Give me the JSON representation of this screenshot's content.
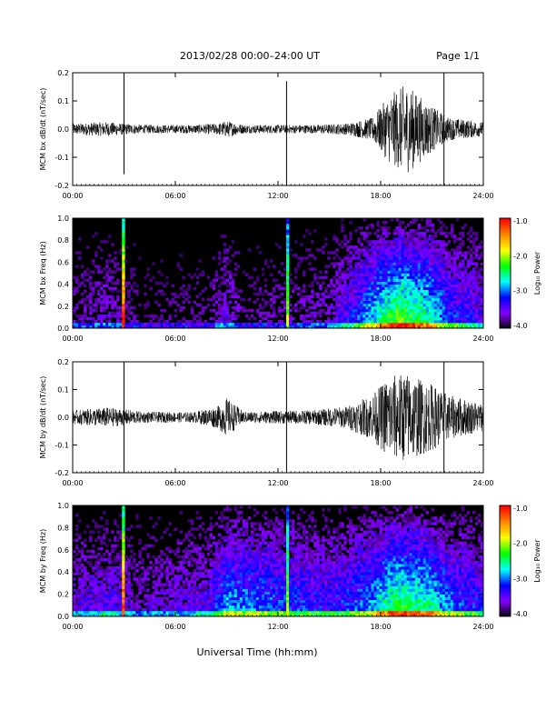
{
  "header": {
    "title": "2013/02/28  00:00–24:00 UT",
    "page": "Page 1/1"
  },
  "footer": {
    "xlabel": "Universal Time (hh:mm)"
  },
  "colorbar": {
    "title": "Log₁₀ Power",
    "ticks": [
      "-1.0",
      "-2.0",
      "-3.0",
      "-4.0"
    ],
    "colors": [
      "#ff0000",
      "#ff8800",
      "#ffff00",
      "#00ff00",
      "#00ffff",
      "#0000ff",
      "#8800ff",
      "#000000"
    ]
  },
  "chart_data": [
    {
      "type": "line",
      "ylabel": "MCM bx dB/dt (nT/sec)",
      "ylim": [
        -0.2,
        0.2
      ],
      "yticks": [
        "0.2",
        "0.1",
        "0.0",
        "-0.1",
        "-0.2"
      ],
      "xticks": [
        "00:00",
        "06:00",
        "12:00",
        "18:00",
        "24:00"
      ],
      "xlim_hours": [
        0,
        24
      ],
      "envelope": [
        {
          "x": 0,
          "amp": 0.02
        },
        {
          "x": 2,
          "amp": 0.025
        },
        {
          "x": 3,
          "amp": 0.02
        },
        {
          "x": 4,
          "amp": 0.015
        },
        {
          "x": 7,
          "amp": 0.015
        },
        {
          "x": 8.5,
          "amp": 0.02
        },
        {
          "x": 9,
          "amp": 0.03
        },
        {
          "x": 10,
          "amp": 0.015
        },
        {
          "x": 14,
          "amp": 0.015
        },
        {
          "x": 16,
          "amp": 0.02
        },
        {
          "x": 17.5,
          "amp": 0.04
        },
        {
          "x": 18.5,
          "amp": 0.12
        },
        {
          "x": 19.5,
          "amp": 0.16
        },
        {
          "x": 21,
          "amp": 0.08
        },
        {
          "x": 22,
          "amp": 0.04
        },
        {
          "x": 24,
          "amp": 0.025
        }
      ],
      "spikes": [
        {
          "x": 3.0,
          "ymin": -0.16,
          "ymax": 0.2
        },
        {
          "x": 12.5,
          "ymin": -0.2,
          "ymax": 0.17
        },
        {
          "x": 21.7,
          "ymin": -0.2,
          "ymax": 0.2
        }
      ]
    },
    {
      "type": "heatmap",
      "ylabel": "MCM bx Freq (Hz)",
      "ylim": [
        0,
        1.0
      ],
      "yticks": [
        "1.0",
        "0.8",
        "0.6",
        "0.4",
        "0.2",
        "0.0"
      ],
      "xticks": [
        "00:00",
        "06:00",
        "12:00",
        "18:00",
        "24:00"
      ],
      "xlim_hours": [
        0,
        24
      ],
      "zlim": [
        -4.0,
        -1.0
      ],
      "activity": [
        {
          "x": 0,
          "level": 0.15
        },
        {
          "x": 2,
          "level": 0.2
        },
        {
          "x": 4,
          "level": 0.1
        },
        {
          "x": 8,
          "level": 0.12
        },
        {
          "x": 9,
          "level": 0.25
        },
        {
          "x": 10,
          "level": 0.12
        },
        {
          "x": 15,
          "level": 0.2
        },
        {
          "x": 17,
          "level": 0.45
        },
        {
          "x": 19,
          "level": 0.75
        },
        {
          "x": 21,
          "level": 0.6
        },
        {
          "x": 22,
          "level": 0.4
        },
        {
          "x": 24,
          "level": 0.3
        }
      ],
      "lines": [
        {
          "x": 3.0,
          "strength": 1.0
        },
        {
          "x": 12.5,
          "strength": 0.7
        }
      ]
    },
    {
      "type": "line",
      "ylabel": "MCM by dB/dt (nT/sec)",
      "ylim": [
        -0.2,
        0.2
      ],
      "yticks": [
        "0.2",
        "0.1",
        "0.0",
        "-0.1",
        "-0.2"
      ],
      "xticks": [
        "00:00",
        "06:00",
        "12:00",
        "18:00",
        "24:00"
      ],
      "xlim_hours": [
        0,
        24
      ],
      "envelope": [
        {
          "x": 0,
          "amp": 0.025
        },
        {
          "x": 2,
          "amp": 0.035
        },
        {
          "x": 3,
          "amp": 0.03
        },
        {
          "x": 4,
          "amp": 0.02
        },
        {
          "x": 7,
          "amp": 0.018
        },
        {
          "x": 8.5,
          "amp": 0.04
        },
        {
          "x": 9,
          "amp": 0.07
        },
        {
          "x": 10,
          "amp": 0.02
        },
        {
          "x": 14,
          "amp": 0.025
        },
        {
          "x": 16,
          "amp": 0.04
        },
        {
          "x": 17.5,
          "amp": 0.08
        },
        {
          "x": 18.5,
          "amp": 0.15
        },
        {
          "x": 19.5,
          "amp": 0.16
        },
        {
          "x": 21,
          "amp": 0.12
        },
        {
          "x": 22,
          "amp": 0.08
        },
        {
          "x": 24,
          "amp": 0.05
        }
      ],
      "spikes": [
        {
          "x": 3.0,
          "ymin": -0.2,
          "ymax": 0.2
        },
        {
          "x": 12.5,
          "ymin": -0.2,
          "ymax": 0.2
        },
        {
          "x": 21.7,
          "ymin": -0.2,
          "ymax": 0.2
        }
      ]
    },
    {
      "type": "heatmap",
      "ylabel": "MCM by Freq (Hz)",
      "ylim": [
        0,
        1.0
      ],
      "yticks": [
        "1.0",
        "0.8",
        "0.6",
        "0.4",
        "0.2",
        "0.0"
      ],
      "xticks": [
        "00:00",
        "06:00",
        "12:00",
        "18:00",
        "24:00"
      ],
      "xlim_hours": [
        0,
        24
      ],
      "zlim": [
        -4.0,
        -1.0
      ],
      "activity": [
        {
          "x": 0,
          "level": 0.25
        },
        {
          "x": 2,
          "level": 0.3
        },
        {
          "x": 4,
          "level": 0.2
        },
        {
          "x": 8,
          "level": 0.3
        },
        {
          "x": 9,
          "level": 0.5
        },
        {
          "x": 11,
          "level": 0.45
        },
        {
          "x": 13,
          "level": 0.4
        },
        {
          "x": 15,
          "level": 0.35
        },
        {
          "x": 17,
          "level": 0.45
        },
        {
          "x": 19,
          "level": 0.7
        },
        {
          "x": 21,
          "level": 0.6
        },
        {
          "x": 22,
          "level": 0.45
        },
        {
          "x": 24,
          "level": 0.35
        }
      ],
      "lines": [
        {
          "x": 3.0,
          "strength": 1.0
        },
        {
          "x": 12.5,
          "strength": 0.7
        }
      ]
    }
  ]
}
